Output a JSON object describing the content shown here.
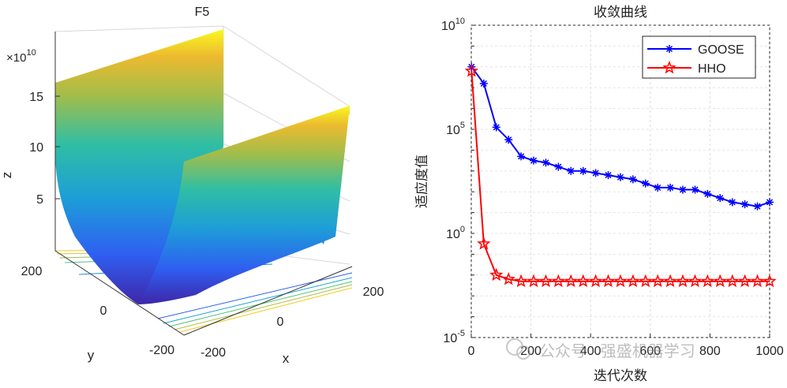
{
  "chart_data": [
    {
      "type": "surface3d",
      "title": "F5",
      "xlabel": "x",
      "ylabel": "y",
      "zlabel": "z",
      "xlim": [
        -200,
        200
      ],
      "ylim": [
        -200,
        200
      ],
      "zlim": [
        0,
        17
      ],
      "z_exponent_label": "×10",
      "z_exponent_power": "10",
      "x_ticks": [
        "-200",
        "0",
        "200"
      ],
      "y_ticks": [
        "200",
        "0",
        "-200"
      ],
      "z_ticks": [
        "5",
        "10",
        "15"
      ],
      "colormap": "parula"
    },
    {
      "type": "line",
      "title": "收敛曲线",
      "xlabel": "迭代次数",
      "ylabel": "适应度值",
      "yscale": "log",
      "xlim": [
        0,
        1000
      ],
      "ylim_exp": [
        -5,
        10
      ],
      "x_ticks": [
        "0",
        "200",
        "400",
        "600",
        "800",
        "1000"
      ],
      "y_ticks": [
        {
          "base": "10",
          "exp": "10",
          "value": 10
        },
        {
          "base": "10",
          "exp": "5",
          "value": 5
        },
        {
          "base": "10",
          "exp": "0",
          "value": 0
        },
        {
          "base": "10",
          "exp": "-5",
          "value": -5
        }
      ],
      "legend_position": "top-right",
      "series": [
        {
          "name": "GOOSE",
          "color": "#0000ff",
          "marker": "asterisk",
          "x": [
            1,
            42,
            84,
            125,
            167,
            209,
            250,
            292,
            334,
            375,
            417,
            459,
            500,
            542,
            584,
            625,
            667,
            709,
            750,
            792,
            834,
            875,
            917,
            959,
            1000
          ],
          "log10_y": [
            8.0,
            7.2,
            5.1,
            4.5,
            3.7,
            3.5,
            3.4,
            3.2,
            3.0,
            3.0,
            2.9,
            2.8,
            2.7,
            2.6,
            2.4,
            2.2,
            2.2,
            2.1,
            2.1,
            1.9,
            1.7,
            1.5,
            1.4,
            1.3,
            1.5
          ]
        },
        {
          "name": "HHO",
          "color": "#ff0000",
          "marker": "star",
          "x": [
            1,
            42,
            84,
            125,
            167,
            209,
            250,
            292,
            334,
            375,
            417,
            459,
            500,
            542,
            584,
            625,
            667,
            709,
            750,
            792,
            834,
            875,
            917,
            959,
            1000
          ],
          "log10_y": [
            7.8,
            -0.5,
            -2.0,
            -2.2,
            -2.3,
            -2.3,
            -2.3,
            -2.3,
            -2.3,
            -2.3,
            -2.3,
            -2.3,
            -2.3,
            -2.3,
            -2.3,
            -2.3,
            -2.3,
            -2.3,
            -2.3,
            -2.3,
            -2.3,
            -2.3,
            -2.3,
            -2.3,
            -2.3
          ]
        }
      ]
    }
  ],
  "watermark": "公众号 · 强盛机器学习"
}
